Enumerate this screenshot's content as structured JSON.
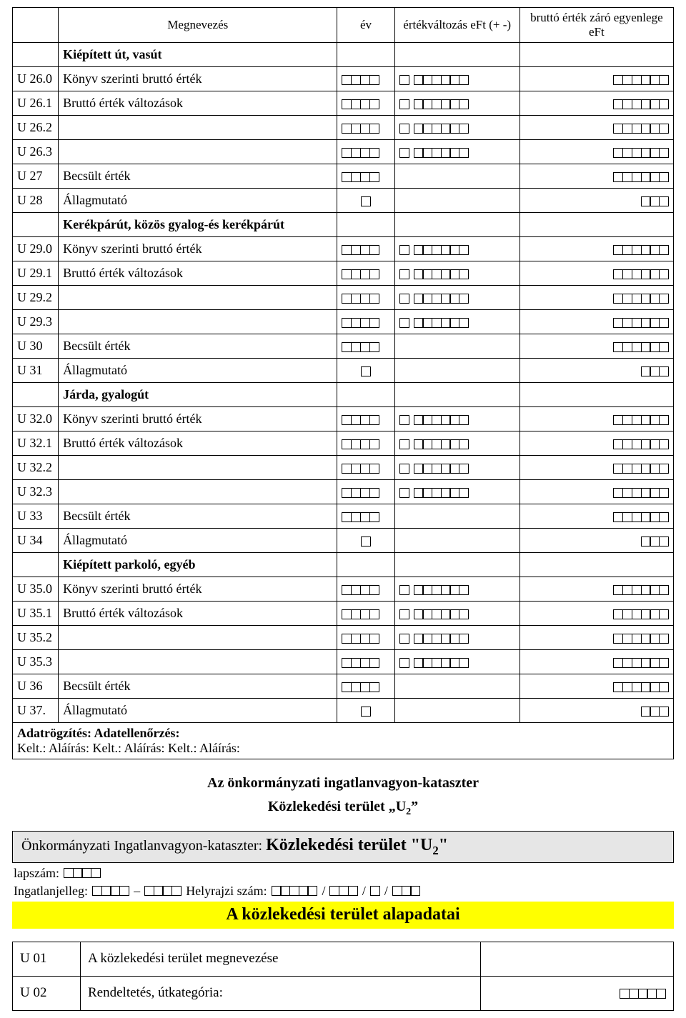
{
  "header": {
    "col_name": "Megnevezés",
    "col_year": "év",
    "col_change": "értékváltozás eFt (+ -)",
    "col_balance": "bruttó érték záró egyenlege eFt"
  },
  "sections": [
    {
      "heading": "Kiépített út, vasút",
      "rows": [
        {
          "code": "U 26.0",
          "name": "Könyv szerinti bruttó érték",
          "year": 4,
          "change": 7,
          "balance": 6
        },
        {
          "code": "U 26.1",
          "name": "Bruttó érték változások",
          "year": 4,
          "change": 7,
          "balance": 6
        },
        {
          "code": "U 26.2",
          "name": "",
          "year": 4,
          "change": 7,
          "balance": 6
        },
        {
          "code": "U 26.3",
          "name": "",
          "year": 4,
          "change": 7,
          "balance": 6
        },
        {
          "code": "U 27",
          "name": "Becsült érték",
          "year": 4,
          "change": 0,
          "balance": 6
        },
        {
          "code": "U 28",
          "name": "Állagmutató",
          "year": 1,
          "change": 0,
          "balance": 3,
          "year_center": true
        }
      ]
    },
    {
      "heading": "Kerékpárút, közös gyalog-és kerékpárút",
      "rows": [
        {
          "code": "U 29.0",
          "name": "Könyv szerinti bruttó érték",
          "year": 4,
          "change": 7,
          "balance": 6
        },
        {
          "code": "U 29.1",
          "name": "Bruttó érték változások",
          "year": 4,
          "change": 7,
          "balance": 6
        },
        {
          "code": "U 29.2",
          "name": "",
          "year": 4,
          "change": 7,
          "balance": 6
        },
        {
          "code": "U 29.3",
          "name": "",
          "year": 4,
          "change": 7,
          "balance": 6
        },
        {
          "code": "U 30",
          "name": "Becsült érték",
          "year": 4,
          "change": 0,
          "balance": 6
        },
        {
          "code": "U 31",
          "name": "Állagmutató",
          "year": 1,
          "change": 0,
          "balance": 3,
          "year_center": true
        }
      ]
    },
    {
      "heading": "Járda, gyalogút",
      "rows": [
        {
          "code": "U 32.0",
          "name": "Könyv szerinti bruttó érték",
          "year": 4,
          "change": 7,
          "balance": 6
        },
        {
          "code": "U 32.1",
          "name": "Bruttó érték változások",
          "year": 4,
          "change": 7,
          "balance": 6
        },
        {
          "code": "U 32.2",
          "name": "",
          "year": 4,
          "change": 7,
          "balance": 6
        },
        {
          "code": "U 32.3",
          "name": "",
          "year": 4,
          "change": 7,
          "balance": 6
        },
        {
          "code": "U 33",
          "name": "Becsült érték",
          "year": 4,
          "change": 0,
          "balance": 6
        },
        {
          "code": "U 34",
          "name": "Állagmutató",
          "year": 1,
          "change": 0,
          "balance": 3,
          "year_center": true
        }
      ]
    },
    {
      "heading": "Kiépített parkoló, egyéb",
      "rows": [
        {
          "code": "U 35.0",
          "name": "Könyv szerinti bruttó érték",
          "year": 4,
          "change": 7,
          "balance": 6
        },
        {
          "code": "U 35.1",
          "name": "Bruttó érték változások",
          "year": 4,
          "change": 7,
          "balance": 6
        },
        {
          "code": "U 35.2",
          "name": "",
          "year": 4,
          "change": 7,
          "balance": 6
        },
        {
          "code": "U 35.3",
          "name": "",
          "year": 4,
          "change": 7,
          "balance": 6
        },
        {
          "code": "U 36",
          "name": "Becsült érték",
          "year": 4,
          "change": 0,
          "balance": 6
        },
        {
          "code": "U 37.",
          "name": "Állagmutató",
          "year": 1,
          "change": 0,
          "balance": 3,
          "year_center": true
        }
      ]
    }
  ],
  "footer": {
    "line1": "Adatrögzítés: Adatellenőrzés:",
    "line2": "Kelt.: Aláírás: Kelt.: Aláírás: Kelt.: Aláírás:"
  },
  "mid": {
    "title1": "Az önkormányzati ingatlanvagyon-kataszter",
    "title2_prefix": "Közlekedési terület „U",
    "title2_sub": "2",
    "title2_suffix": "”",
    "bar_prefix": "Önkormányzati Ingatlanvagyon-kataszter: ",
    "bar_big_prefix": "Közlekedési terület \"U",
    "bar_big_sub": "2",
    "bar_big_suffix": "\"",
    "lapszam_label": "lapszám:",
    "lapszam_boxes": 4,
    "ingatl_label": "Ingatlanjelleg:",
    "ingatl_b1": 4,
    "ingatl_sep1": "–",
    "ingatl_b2": 4,
    "helyrajzi_label": "Helyrajzi szám:",
    "hr_b1": 5,
    "hr_sep": "/",
    "hr_b2": 3,
    "hr_b3": 1,
    "hr_b4": 3,
    "yellow": "A közlekedési terület alapadatai"
  },
  "bottom_rows": [
    {
      "code": "U 01",
      "name": "A közlekedési terület megnevezése",
      "boxes": 0
    },
    {
      "code": "U 02",
      "name": "Rendeltetés, útkategória:",
      "boxes": 5
    }
  ],
  "colors": {
    "highlight": "#ffff00",
    "shade": "#e6e6e6",
    "text": "#000000",
    "bg": "#ffffff"
  }
}
